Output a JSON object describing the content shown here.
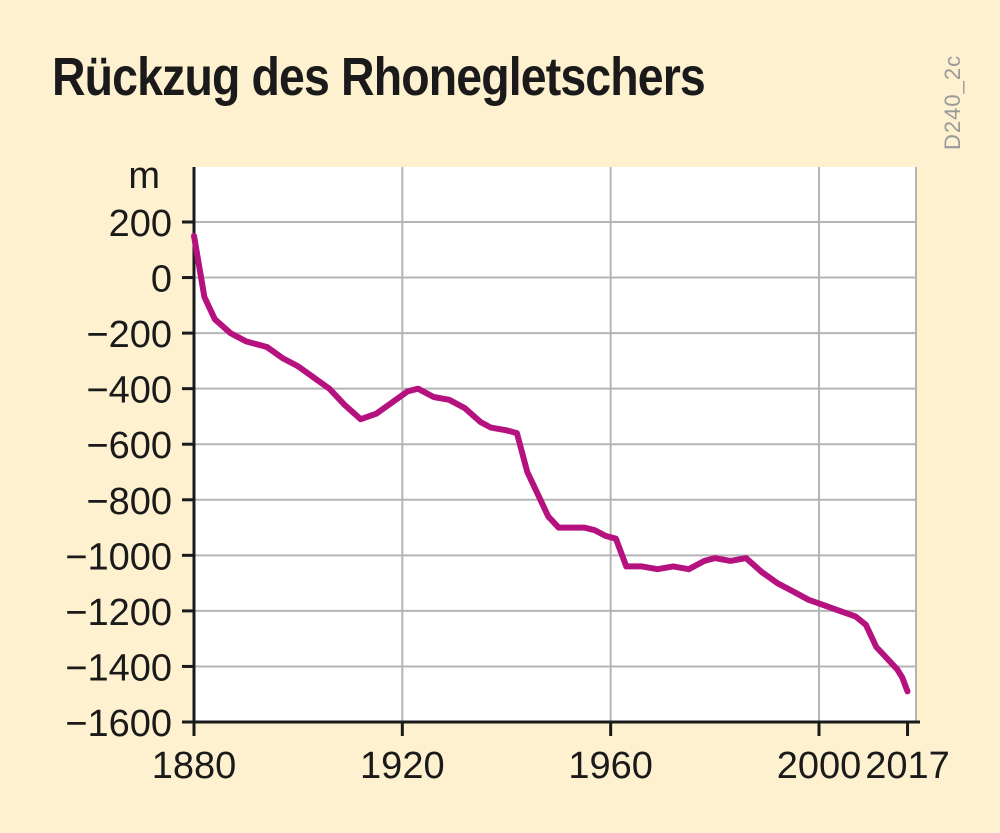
{
  "chart_data": {
    "type": "line",
    "title": "Rückzug des Rhonegletschers",
    "ylabel": "m",
    "xlabel": "",
    "xlim": [
      1880,
      2017
    ],
    "ylim": [
      -1600,
      200
    ],
    "x_ticks": [
      1880,
      1920,
      1960,
      2000,
      2017
    ],
    "y_ticks": [
      200,
      0,
      -200,
      -400,
      -600,
      -800,
      -1000,
      -1200,
      -1400,
      -1600
    ],
    "grid": true,
    "series": [
      {
        "color": "#b5127f",
        "x": [
          1880,
          1882,
          1884,
          1887,
          1890,
          1894,
          1897,
          1900,
          1903,
          1906,
          1909,
          1912,
          1915,
          1918,
          1921,
          1923,
          1926,
          1929,
          1932,
          1935,
          1937,
          1940,
          1942,
          1944,
          1946,
          1948,
          1950,
          1952,
          1955,
          1957,
          1959,
          1961,
          1963,
          1966,
          1969,
          1972,
          1975,
          1978,
          1980,
          1983,
          1986,
          1989,
          1992,
          1995,
          1998,
          2001,
          2004,
          2007,
          2009,
          2011,
          2013,
          2015,
          2016,
          2017
        ],
        "y": [
          150,
          -70,
          -150,
          -200,
          -230,
          -250,
          -290,
          -320,
          -360,
          -400,
          -460,
          -510,
          -490,
          -450,
          -410,
          -400,
          -430,
          -440,
          -470,
          -520,
          -540,
          -550,
          -560,
          -700,
          -780,
          -860,
          -900,
          -900,
          -900,
          -910,
          -930,
          -940,
          -1040,
          -1040,
          -1050,
          -1040,
          -1050,
          -1020,
          -1010,
          -1020,
          -1010,
          -1060,
          -1100,
          -1130,
          -1160,
          -1180,
          -1200,
          -1220,
          -1250,
          -1330,
          -1370,
          -1410,
          -1440,
          -1490
        ]
      }
    ]
  },
  "label": {
    "code": "D240_2c"
  }
}
